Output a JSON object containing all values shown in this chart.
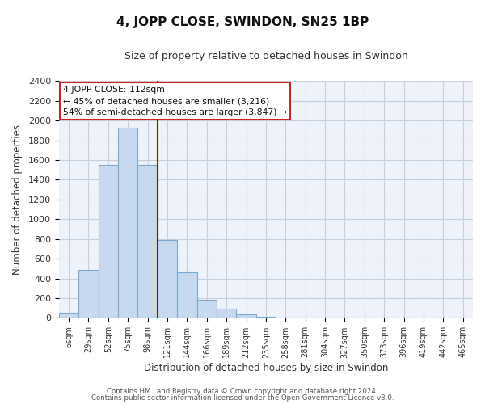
{
  "title": "4, JOPP CLOSE, SWINDON, SN25 1BP",
  "subtitle": "Size of property relative to detached houses in Swindon",
  "xlabel": "Distribution of detached houses by size in Swindon",
  "ylabel": "Number of detached properties",
  "bar_labels": [
    "6sqm",
    "29sqm",
    "52sqm",
    "75sqm",
    "98sqm",
    "121sqm",
    "144sqm",
    "166sqm",
    "189sqm",
    "212sqm",
    "235sqm",
    "258sqm",
    "281sqm",
    "304sqm",
    "327sqm",
    "350sqm",
    "373sqm",
    "396sqm",
    "419sqm",
    "442sqm",
    "465sqm"
  ],
  "bar_values": [
    55,
    490,
    1550,
    1930,
    1550,
    790,
    460,
    185,
    95,
    35,
    8,
    0,
    0,
    0,
    0,
    0,
    0,
    0,
    0,
    0,
    0
  ],
  "bar_color": "#c8d8ee",
  "bar_edge_color": "#7aaad0",
  "vline_color": "#aa0000",
  "annotation_line1": "4 JOPP CLOSE: 112sqm",
  "annotation_line2": "← 45% of detached houses are smaller (3,216)",
  "annotation_line3": "54% of semi-detached houses are larger (3,847) →",
  "annotation_box_color": "#ffffff",
  "annotation_box_edge": "#cc2222",
  "ylim": [
    0,
    2400
  ],
  "yticks": [
    0,
    200,
    400,
    600,
    800,
    1000,
    1200,
    1400,
    1600,
    1800,
    2000,
    2200,
    2400
  ],
  "footer1": "Contains HM Land Registry data © Crown copyright and database right 2024.",
  "footer2": "Contains public sector information licensed under the Open Government Licence v3.0.",
  "background_color": "#ffffff",
  "plot_bg_color": "#eef2fa",
  "grid_color": "#c8d0e0"
}
